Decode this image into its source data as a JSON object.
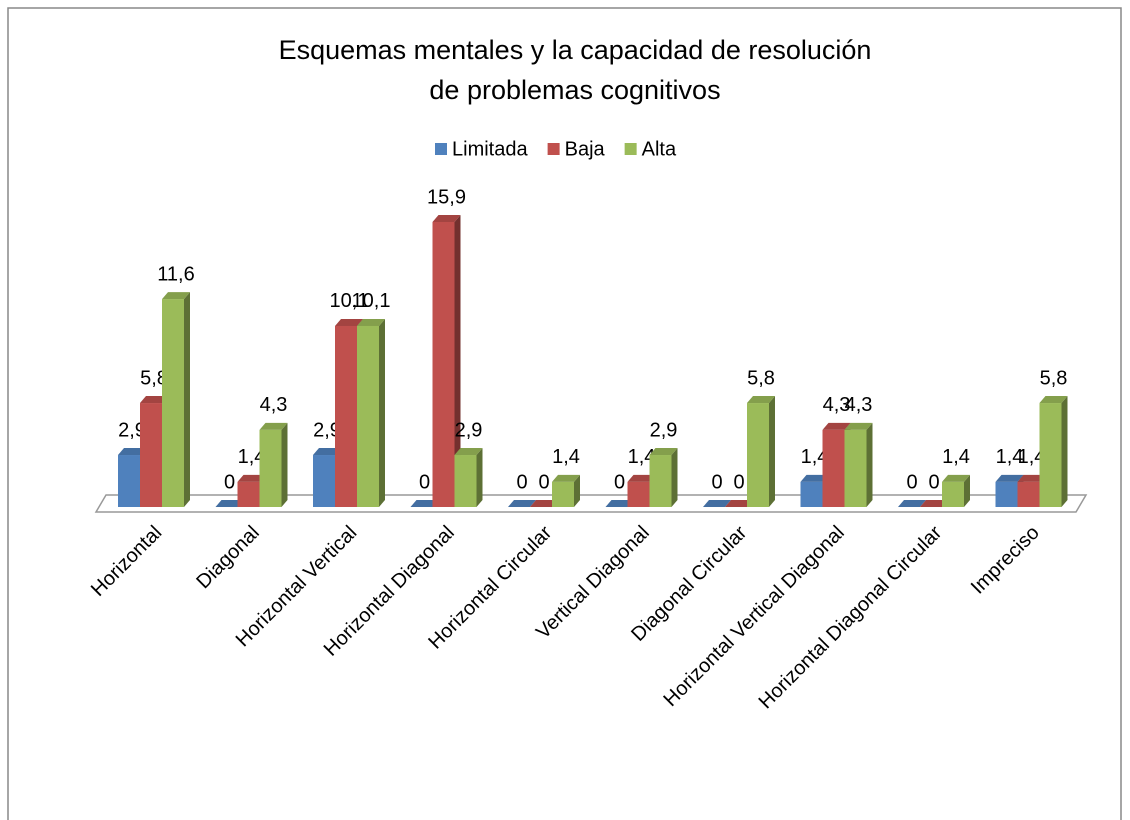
{
  "chart_data": {
    "type": "bar3d",
    "title": "Esquemas mentales y la capacidad de resolución de problemas cognitivos",
    "categories": [
      "Horizontal",
      "Diagonal",
      "Horizontal Vertical",
      "Horizontal Diagonal",
      "Horizontal Circular",
      "Vertical Diagonal",
      "Diagonal Circular",
      "Horizontal Vertical Diagonal",
      "Horizontal Diagonal Circular",
      "Impreciso"
    ],
    "series": [
      {
        "name": "Limitada",
        "color": "#4f81bd",
        "values": [
          2.9,
          0,
          2.9,
          0,
          0,
          0,
          0,
          1.4,
          0,
          1.4
        ],
        "value_labels": [
          "2,9",
          "0",
          "2,9",
          "0",
          "0",
          "0",
          "0",
          "1,4",
          "0",
          "1,4"
        ]
      },
      {
        "name": "Baja",
        "color": "#c0504d",
        "values": [
          5.8,
          1.4,
          10.1,
          15.9,
          0,
          1.4,
          0,
          4.3,
          0,
          1.4
        ],
        "value_labels": [
          "5,8",
          "1,4",
          "10,1",
          "15,9",
          "0",
          "1,4",
          "0",
          "4,3",
          "0",
          "1,4"
        ]
      },
      {
        "name": "Alta",
        "color": "#9bbb59",
        "values": [
          11.6,
          4.3,
          10.1,
          2.9,
          1.4,
          2.9,
          5.8,
          4.3,
          1.4,
          5.8
        ],
        "value_labels": [
          "11,6",
          "4,3",
          "10,1",
          "2,9",
          "1,4",
          "2,9",
          "5,8",
          "4,3",
          "1,4",
          "5,8"
        ]
      }
    ],
    "legend": "top"
  }
}
